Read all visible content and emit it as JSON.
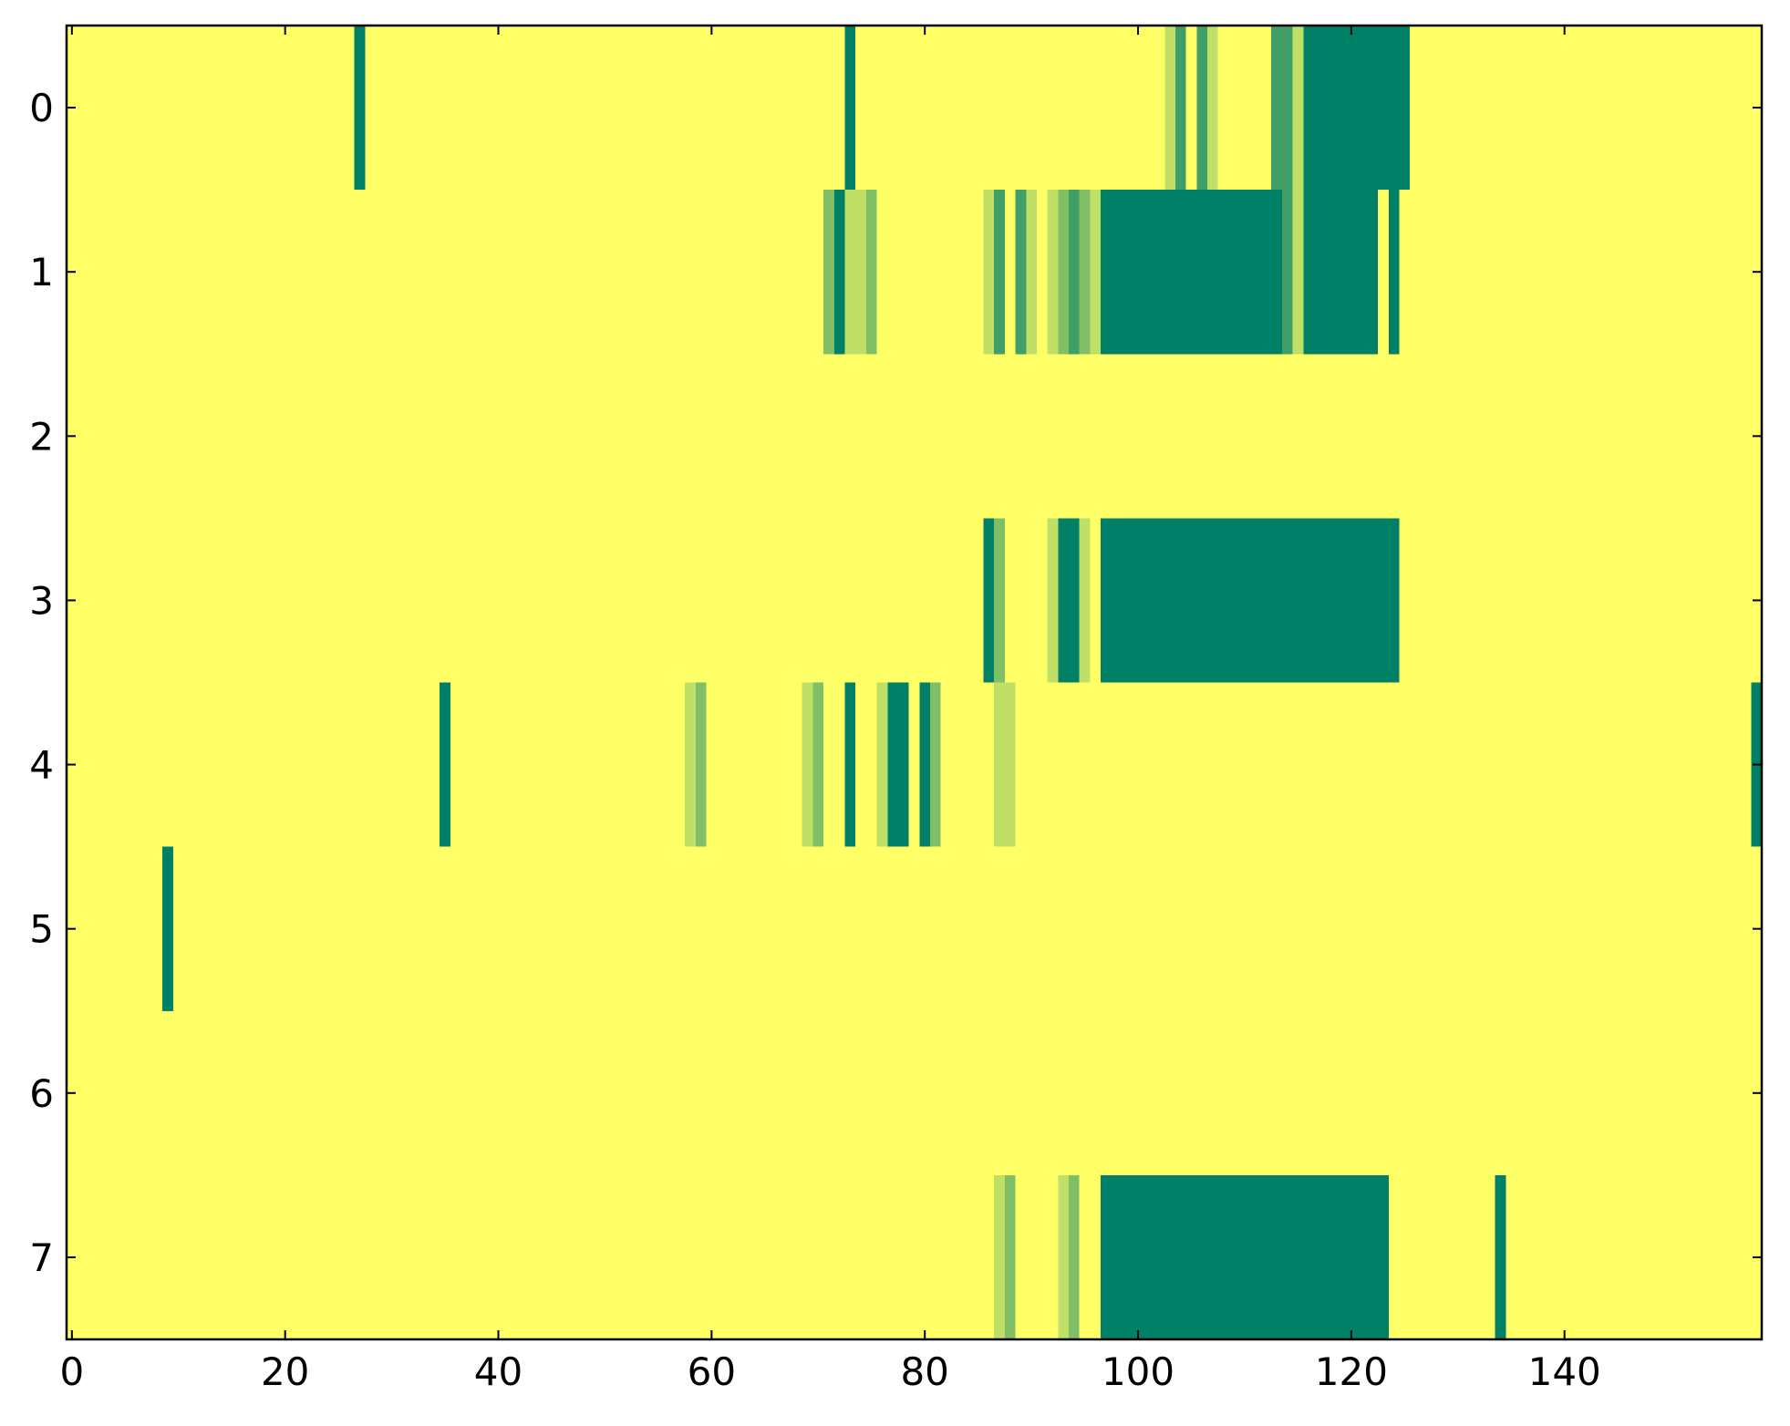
{
  "chart_data": {
    "type": "heatmap",
    "colormap": "summer_r",
    "vlim": [
      0,
      4
    ],
    "xlim": [
      -0.5,
      158.5
    ],
    "ylim": [
      7.5,
      -0.5
    ],
    "xticks": [
      0,
      20,
      40,
      60,
      80,
      100,
      120,
      140
    ],
    "yticks": [
      0,
      1,
      2,
      3,
      4,
      5,
      6,
      7
    ],
    "values": [
      [
        0,
        0,
        0,
        0,
        0,
        0,
        0,
        0,
        0,
        0,
        0,
        0,
        0,
        0,
        0,
        0,
        0,
        0,
        0,
        0,
        0,
        0,
        0,
        0,
        0,
        0,
        0,
        4,
        0,
        0,
        0,
        0,
        0,
        0,
        0,
        0,
        0,
        0,
        0,
        0,
        0,
        0,
        0,
        0,
        0,
        0,
        0,
        0,
        0,
        0,
        0,
        0,
        0,
        0,
        0,
        0,
        0,
        0,
        0,
        0,
        0,
        0,
        0,
        0,
        0,
        0,
        0,
        0,
        0,
        0,
        0,
        0,
        0,
        4,
        0,
        0,
        0,
        0,
        0,
        0,
        0,
        0,
        0,
        0,
        0,
        0,
        0,
        0,
        0,
        0,
        0,
        0,
        0,
        0,
        0,
        0,
        0,
        0,
        0,
        0,
        0,
        0,
        0,
        1,
        3,
        0,
        3,
        1,
        0,
        0,
        0,
        0,
        0,
        3,
        3,
        1,
        4,
        4,
        4,
        4,
        4,
        4,
        4,
        4,
        4,
        4,
        0,
        0,
        0,
        0,
        0,
        0,
        0,
        0,
        0,
        0,
        0,
        0,
        0,
        0,
        0,
        0,
        0,
        0,
        0,
        0,
        0,
        0,
        0,
        0,
        0,
        0,
        0,
        0,
        0,
        0,
        0,
        0,
        0
      ],
      [
        0,
        0,
        0,
        0,
        0,
        0,
        0,
        0,
        0,
        0,
        0,
        0,
        0,
        0,
        0,
        0,
        0,
        0,
        0,
        0,
        0,
        0,
        0,
        0,
        0,
        0,
        0,
        0,
        0,
        0,
        0,
        0,
        0,
        0,
        0,
        0,
        0,
        0,
        0,
        0,
        0,
        0,
        0,
        0,
        0,
        0,
        0,
        0,
        0,
        0,
        0,
        0,
        0,
        0,
        0,
        0,
        0,
        0,
        0,
        0,
        0,
        0,
        0,
        0,
        0,
        0,
        0,
        0,
        0,
        0,
        0,
        2,
        4,
        1,
        1,
        2,
        0,
        0,
        0,
        0,
        0,
        0,
        0,
        0,
        0,
        0,
        1,
        3,
        0,
        3,
        1,
        0,
        1,
        2,
        3,
        2,
        1,
        4,
        4,
        4,
        4,
        4,
        4,
        4,
        4,
        4,
        4,
        4,
        4,
        4,
        4,
        4,
        4,
        4,
        3,
        1,
        4,
        4,
        4,
        4,
        4,
        4,
        4,
        0,
        4,
        0,
        0,
        0,
        0,
        0,
        0,
        0,
        0,
        0,
        0,
        0,
        0,
        0,
        0,
        0,
        0,
        0,
        0,
        0,
        0,
        0,
        0,
        0,
        0,
        0,
        0,
        0,
        0,
        0,
        0,
        0,
        0,
        0,
        0
      ],
      [
        0,
        0,
        0,
        0,
        0,
        0,
        0,
        0,
        0,
        0,
        0,
        0,
        0,
        0,
        0,
        0,
        0,
        0,
        0,
        0,
        0,
        0,
        0,
        0,
        0,
        0,
        0,
        0,
        0,
        0,
        0,
        0,
        0,
        0,
        0,
        0,
        0,
        0,
        0,
        0,
        0,
        0,
        0,
        0,
        0,
        0,
        0,
        0,
        0,
        0,
        0,
        0,
        0,
        0,
        0,
        0,
        0,
        0,
        0,
        0,
        0,
        0,
        0,
        0,
        0,
        0,
        0,
        0,
        0,
        0,
        0,
        0,
        0,
        0,
        0,
        0,
        0,
        0,
        0,
        0,
        0,
        0,
        0,
        0,
        0,
        0,
        0,
        0,
        0,
        0,
        0,
        0,
        0,
        0,
        0,
        0,
        0,
        0,
        0,
        0,
        0,
        0,
        0,
        0,
        0,
        0,
        0,
        0,
        0,
        0,
        0,
        0,
        0,
        0,
        0,
        0,
        0,
        0,
        0,
        0,
        0,
        0,
        0,
        0,
        0,
        0,
        0,
        0,
        0,
        0,
        0,
        0,
        0,
        0,
        0,
        0,
        0,
        0,
        0,
        0,
        0,
        0,
        0,
        0,
        0,
        0,
        0,
        0,
        0,
        0,
        0,
        0,
        0,
        0,
        0,
        0,
        0,
        0,
        0
      ],
      [
        0,
        0,
        0,
        0,
        0,
        0,
        0,
        0,
        0,
        0,
        0,
        0,
        0,
        0,
        0,
        0,
        0,
        0,
        0,
        0,
        0,
        0,
        0,
        0,
        0,
        0,
        0,
        0,
        0,
        0,
        0,
        0,
        0,
        0,
        0,
        0,
        0,
        0,
        0,
        0,
        0,
        0,
        0,
        0,
        0,
        0,
        0,
        0,
        0,
        0,
        0,
        0,
        0,
        0,
        0,
        0,
        0,
        0,
        0,
        0,
        0,
        0,
        0,
        0,
        0,
        0,
        0,
        0,
        0,
        0,
        0,
        0,
        0,
        0,
        0,
        0,
        0,
        0,
        0,
        0,
        0,
        0,
        0,
        0,
        0,
        0,
        4,
        2,
        0,
        0,
        0,
        0,
        1,
        4,
        4,
        1,
        0,
        4,
        4,
        4,
        4,
        4,
        4,
        4,
        4,
        4,
        4,
        4,
        4,
        4,
        4,
        4,
        4,
        4,
        4,
        4,
        4,
        4,
        4,
        4,
        4,
        4,
        4,
        4,
        4,
        0,
        0,
        0,
        0,
        0,
        0,
        0,
        0,
        0,
        0,
        0,
        0,
        0,
        0,
        0,
        0,
        0,
        0,
        0,
        0,
        0,
        0,
        0,
        0,
        0,
        0,
        0,
        0,
        0,
        0,
        0,
        0,
        0,
        0
      ],
      [
        0,
        0,
        0,
        0,
        0,
        0,
        0,
        0,
        0,
        0,
        0,
        0,
        0,
        0,
        0,
        0,
        0,
        0,
        0,
        0,
        0,
        0,
        0,
        0,
        0,
        0,
        0,
        0,
        0,
        0,
        0,
        0,
        0,
        0,
        0,
        4,
        0,
        0,
        0,
        0,
        0,
        0,
        0,
        0,
        0,
        0,
        0,
        0,
        0,
        0,
        0,
        0,
        0,
        0,
        0,
        0,
        0,
        0,
        1,
        2,
        0,
        0,
        0,
        0,
        0,
        0,
        0,
        0,
        0,
        1,
        2,
        0,
        0,
        4,
        0,
        0,
        1,
        4,
        4,
        0,
        4,
        2,
        0,
        0,
        0,
        0,
        0,
        1,
        1,
        0,
        0,
        0,
        0,
        0,
        0,
        0,
        0,
        0,
        0,
        0,
        0,
        0,
        0,
        0,
        0,
        0,
        0,
        0,
        0,
        0,
        0,
        0,
        0,
        0,
        0,
        0,
        0,
        0,
        0,
        0,
        0,
        0,
        0,
        0,
        0,
        0,
        0,
        0,
        0,
        0,
        0,
        0,
        0,
        0,
        0,
        0,
        0,
        0,
        0,
        0,
        0,
        0,
        0,
        0,
        0,
        0,
        0,
        0,
        0,
        0,
        0,
        0,
        0,
        0,
        0,
        0,
        0,
        0,
        4
      ],
      [
        0,
        0,
        0,
        0,
        0,
        0,
        0,
        0,
        0,
        4,
        0,
        0,
        0,
        0,
        0,
        0,
        0,
        0,
        0,
        0,
        0,
        0,
        0,
        0,
        0,
        0,
        0,
        0,
        0,
        0,
        0,
        0,
        0,
        0,
        0,
        0,
        0,
        0,
        0,
        0,
        0,
        0,
        0,
        0,
        0,
        0,
        0,
        0,
        0,
        0,
        0,
        0,
        0,
        0,
        0,
        0,
        0,
        0,
        0,
        0,
        0,
        0,
        0,
        0,
        0,
        0,
        0,
        0,
        0,
        0,
        0,
        0,
        0,
        0,
        0,
        0,
        0,
        0,
        0,
        0,
        0,
        0,
        0,
        0,
        0,
        0,
        0,
        0,
        0,
        0,
        0,
        0,
        0,
        0,
        0,
        0,
        0,
        0,
        0,
        0,
        0,
        0,
        0,
        0,
        0,
        0,
        0,
        0,
        0,
        0,
        0,
        0,
        0,
        0,
        0,
        0,
        0,
        0,
        0,
        0,
        0,
        0,
        0,
        0,
        0,
        0,
        0,
        0,
        0,
        0,
        0,
        0,
        0,
        0,
        0,
        0,
        0,
        0,
        0,
        0,
        0,
        0,
        0,
        0,
        0,
        0,
        0,
        0,
        0,
        0,
        0,
        0,
        0,
        0,
        0,
        0,
        0,
        0,
        0
      ],
      [
        0,
        0,
        0,
        0,
        0,
        0,
        0,
        0,
        0,
        0,
        0,
        0,
        0,
        0,
        0,
        0,
        0,
        0,
        0,
        0,
        0,
        0,
        0,
        0,
        0,
        0,
        0,
        0,
        0,
        0,
        0,
        0,
        0,
        0,
        0,
        0,
        0,
        0,
        0,
        0,
        0,
        0,
        0,
        0,
        0,
        0,
        0,
        0,
        0,
        0,
        0,
        0,
        0,
        0,
        0,
        0,
        0,
        0,
        0,
        0,
        0,
        0,
        0,
        0,
        0,
        0,
        0,
        0,
        0,
        0,
        0,
        0,
        0,
        0,
        0,
        0,
        0,
        0,
        0,
        0,
        0,
        0,
        0,
        0,
        0,
        0,
        0,
        0,
        0,
        0,
        0,
        0,
        0,
        0,
        0,
        0,
        0,
        0,
        0,
        0,
        0,
        0,
        0,
        0,
        0,
        0,
        0,
        0,
        0,
        0,
        0,
        0,
        0,
        0,
        0,
        0,
        0,
        0,
        0,
        0,
        0,
        0,
        0,
        0,
        0,
        0,
        0,
        0,
        0,
        0,
        0,
        0,
        0,
        0,
        0,
        0,
        0,
        0,
        0,
        0,
        0,
        0,
        0,
        0,
        0,
        0,
        0,
        0,
        0,
        0,
        0,
        0,
        0,
        0,
        0,
        0,
        0,
        0,
        0
      ],
      [
        0,
        0,
        0,
        0,
        0,
        0,
        0,
        0,
        0,
        0,
        0,
        0,
        0,
        0,
        0,
        0,
        0,
        0,
        0,
        0,
        0,
        0,
        0,
        0,
        0,
        0,
        0,
        0,
        0,
        0,
        0,
        0,
        0,
        0,
        0,
        0,
        0,
        0,
        0,
        0,
        0,
        0,
        0,
        0,
        0,
        0,
        0,
        0,
        0,
        0,
        0,
        0,
        0,
        0,
        0,
        0,
        0,
        0,
        0,
        0,
        0,
        0,
        0,
        0,
        0,
        0,
        0,
        0,
        0,
        0,
        0,
        0,
        0,
        0,
        0,
        0,
        0,
        0,
        0,
        0,
        0,
        0,
        0,
        0,
        0,
        0,
        0,
        1,
        2,
        0,
        0,
        0,
        0,
        1,
        2,
        0,
        0,
        4,
        4,
        4,
        4,
        4,
        4,
        4,
        4,
        4,
        4,
        4,
        4,
        4,
        4,
        4,
        4,
        4,
        4,
        4,
        4,
        4,
        4,
        4,
        4,
        4,
        4,
        4,
        0,
        0,
        0,
        0,
        0,
        0,
        0,
        0,
        0,
        0,
        4,
        0,
        0,
        0,
        0,
        0,
        0,
        0,
        0,
        0,
        0,
        0,
        0,
        0,
        0,
        0,
        0,
        0,
        0,
        0,
        0,
        0,
        0,
        0,
        0
      ]
    ]
  }
}
